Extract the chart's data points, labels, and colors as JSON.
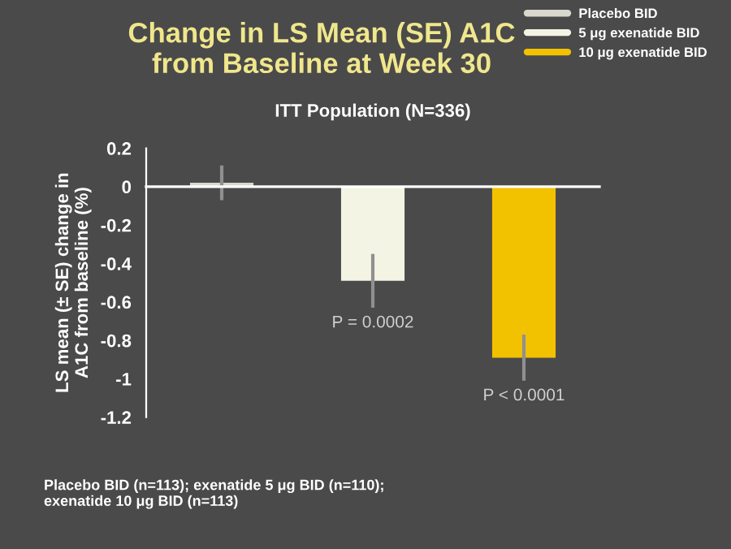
{
  "chart_data": {
    "type": "bar",
    "title": "Change in LS Mean (SE) A1C\nfrom Baseline at Week 30",
    "subtitle": "ITT Population (N=336)",
    "ylabel": "LS mean (± SE) change in\nA1C from baseline (%)",
    "categories": [
      null,
      null,
      null
    ],
    "series": [
      {
        "name": "Placebo BID",
        "color": "#d8d8cc",
        "values": [
          0.02,
          null,
          null
        ],
        "errors": [
          0.09,
          null,
          null
        ]
      },
      {
        "name": "5 μg exenatide BID",
        "color": "#f4f4e4",
        "values": [
          null,
          -0.49,
          null
        ],
        "errors": [
          null,
          0.14,
          null
        ]
      },
      {
        "name": "10 μg exenatide BID",
        "color": "#f2c200",
        "values": [
          null,
          null,
          -0.89
        ],
        "errors": [
          null,
          null,
          0.12
        ]
      }
    ],
    "ylim": [
      -1.2,
      0.2
    ],
    "yticks": [
      {
        "value": 0.2,
        "label": "0.2"
      },
      0,
      {
        "value": -0.2,
        "label": "-0.2"
      },
      {
        "value": -0.4,
        "label": "-0.4"
      },
      {
        "value": -0.6,
        "label": "-0.6"
      },
      {
        "value": -0.8,
        "label": "-0.8"
      },
      {
        "value": -1,
        "label": "-1"
      },
      {
        "value": -1.2,
        "label": "-1.2"
      }
    ],
    "legend": "top right",
    "annotations": [
      "P = 0.0002",
      "P < 0.0001",
      "Placebo BID (n=113); exenatide 5 μg BID (n=110);\nexenatide 10 μg BID (n=113)"
    ]
  }
}
